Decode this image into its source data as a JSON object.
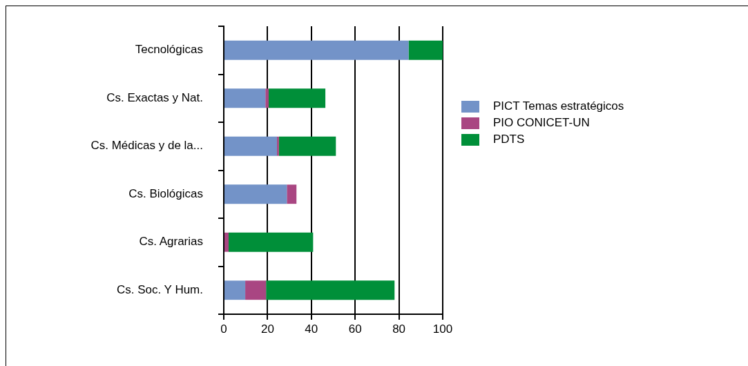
{
  "chart_data": {
    "type": "bar",
    "orientation": "horizontal",
    "stacked": true,
    "categories": [
      "Tecnológicas",
      "Cs. Exactas y Nat.",
      "Cs. Médicas y de la...",
      "Cs. Biológicas",
      "Cs. Agrarias",
      "Cs. Soc. Y Hum."
    ],
    "series": [
      {
        "name": "PICT Temas estratégicos",
        "color": "#7393c8",
        "values": [
          84.4,
          19,
          24.3,
          28.8,
          0,
          9.8
        ]
      },
      {
        "name": "PIO CONICET-UN",
        "color": "#a94682",
        "values": [
          0,
          1.5,
          0.9,
          4.4,
          2.2,
          9.5
        ]
      },
      {
        "name": "PDTS",
        "color": "#008f39",
        "values": [
          15.6,
          25.9,
          26,
          0,
          38.6,
          58.7
        ]
      }
    ],
    "xlim": [
      0,
      100
    ],
    "xticks": [
      0,
      20,
      40,
      60,
      80,
      100
    ],
    "grid": "x",
    "legend": "right"
  }
}
